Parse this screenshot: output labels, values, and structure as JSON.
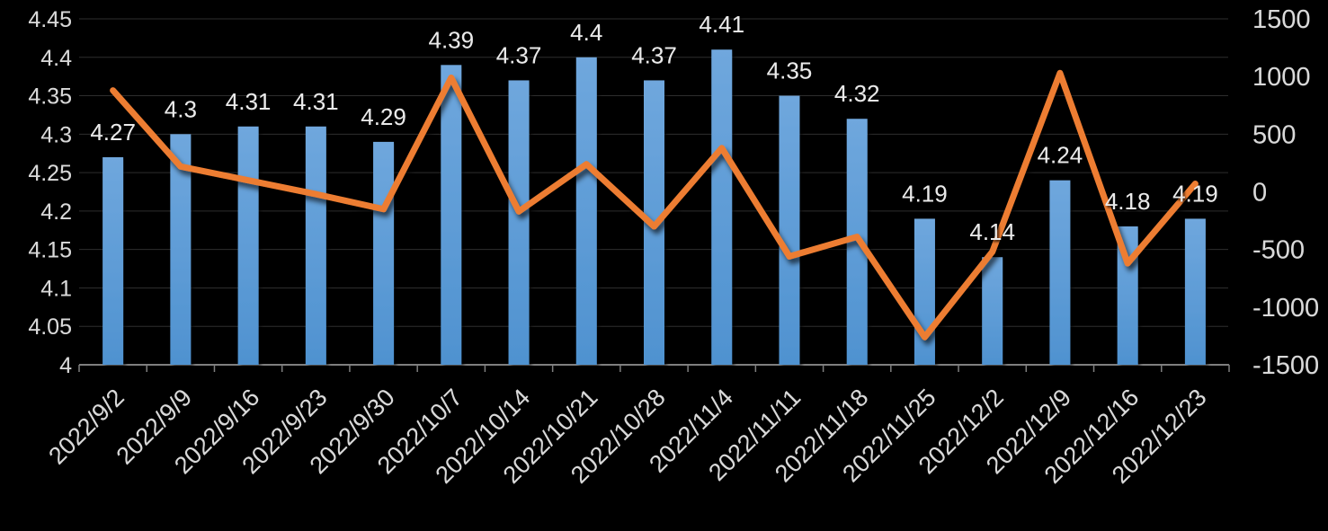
{
  "chart_data": {
    "type": "bar",
    "title": "",
    "legend": "none",
    "grid": true,
    "background": "#000000",
    "categories": [
      "2022/9/2",
      "2022/9/9",
      "2022/9/16",
      "2022/9/23",
      "2022/9/30",
      "2022/10/7",
      "2022/10/14",
      "2022/10/21",
      "2022/10/28",
      "2022/11/4",
      "2022/11/11",
      "2022/11/18",
      "2022/11/25",
      "2022/12/2",
      "2022/12/9",
      "2022/12/16",
      "2022/12/23"
    ],
    "series": [
      {
        "name": "bar-series",
        "type": "bar",
        "axis": "left",
        "color": "#5b9bd5",
        "values": [
          4.27,
          4.3,
          4.31,
          4.31,
          4.29,
          4.39,
          4.37,
          4.4,
          4.37,
          4.41,
          4.35,
          4.32,
          4.19,
          4.14,
          4.24,
          4.18,
          4.19
        ],
        "labels": [
          "4.27",
          "4.3",
          "4.31",
          "4.31",
          "4.29",
          "4.39",
          "4.37",
          "4.4",
          "4.37",
          "4.41",
          "4.35",
          "4.32",
          "4.19",
          "4.14",
          "4.24",
          "4.18",
          "4.19"
        ]
      },
      {
        "name": "line-series",
        "type": "line",
        "axis": "right",
        "color": "#ed7d31",
        "values": [
          880,
          220,
          100,
          -20,
          -150,
          990,
          -170,
          240,
          -300,
          380,
          -560,
          -390,
          -1260,
          -520,
          1030,
          -620,
          70
        ]
      }
    ],
    "left_axis": {
      "min": 4,
      "max": 4.45,
      "step": 0.05,
      "tick_labels": [
        "4.45",
        "4.4",
        "4.35",
        "4.3",
        "4.25",
        "4.2",
        "4.15",
        "4.1",
        "4.05",
        "4"
      ]
    },
    "right_axis": {
      "min": -1500,
      "max": 1500,
      "step": 500,
      "tick_labels": [
        "1500",
        "1000",
        "500",
        "0",
        "-500",
        "-1000",
        "-1500"
      ]
    },
    "colors": {
      "bar_top": "#6fa7dd",
      "bar_bottom": "#4f92d0",
      "line": "#ed7d31",
      "grid": "#2e2e2e",
      "axis_line": "#7f7f7f",
      "tick_text": "#d9d9d9",
      "label_text": "#eaeaea"
    }
  }
}
